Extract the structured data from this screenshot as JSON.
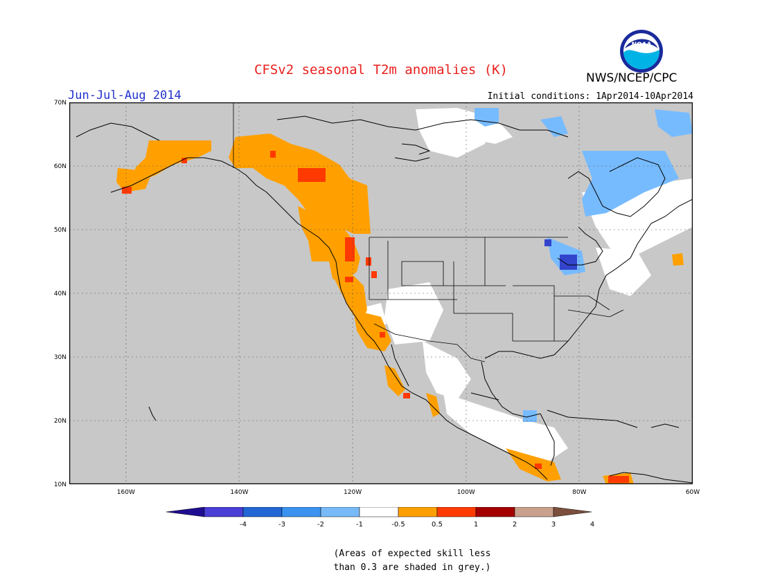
{
  "header": {
    "title": "CFSv2 seasonal T2m anomalies (K)",
    "org": "NWS/NCEP/CPC",
    "season": "Jun-Jul-Aug 2014",
    "initial_conditions": "Initial conditions: 1Apr2014-10Apr2014",
    "logo_text": "NOAA"
  },
  "map": {
    "region": "North America",
    "lon_range": [
      -170,
      -60
    ],
    "lat_range": [
      10,
      70
    ],
    "lat_labels": [
      "70N",
      "60N",
      "50N",
      "40N",
      "30N",
      "20N",
      "10N"
    ],
    "lon_labels": [
      "160W",
      "140W",
      "120W",
      "100W",
      "80W",
      "60W"
    ],
    "grey_skill_color": "#c8c8c8",
    "anomaly_patches": [
      {
        "category": "1",
        "color": "#ffa000",
        "area": "Alaska south coast"
      },
      {
        "category": "1",
        "color": "#ffa000",
        "area": "Yukon / Northern BC"
      },
      {
        "category": "1",
        "color": "#ffa000",
        "area": "Pacific Northwest coast"
      },
      {
        "category": "1",
        "color": "#ffa000",
        "area": "California / Nevada"
      },
      {
        "category": "1",
        "color": "#ffa000",
        "area": "Baja / Gulf of California"
      },
      {
        "category": "1",
        "color": "#ffa000",
        "area": "West Mexico coast"
      },
      {
        "category": "1",
        "color": "#ffa000",
        "area": "Central America"
      },
      {
        "category": "2",
        "color": "#ff3a00",
        "area": "Kodiak / Alaska"
      },
      {
        "category": "2",
        "color": "#ff3a00",
        "area": "Northern BC"
      },
      {
        "category": "2",
        "color": "#ff3a00",
        "area": "Washington / Oregon"
      },
      {
        "category": "2",
        "color": "#ff3a00",
        "area": "Northern South America"
      },
      {
        "category": "-1",
        "color": "#77bbff",
        "area": "Hudson Bay / Quebec"
      },
      {
        "category": "-1",
        "color": "#77bbff",
        "area": "Arctic islands"
      },
      {
        "category": "-1",
        "color": "#77bbff",
        "area": "Great Lakes"
      },
      {
        "category": "-3",
        "color": "#3344cc",
        "area": "Lake Huron / Michigan"
      }
    ]
  },
  "colorbar": {
    "labels": [
      "-4",
      "-3",
      "-2",
      "-1",
      "-0.5",
      "0.5",
      "1",
      "2",
      "3",
      "4"
    ],
    "colors": [
      "#1f0d91",
      "#4a3ed6",
      "#2166d4",
      "#3b93ef",
      "#78baf7",
      "#ffffff",
      "#ffa000",
      "#ff3c00",
      "#a50000",
      "#c8a08c",
      "#7c4f3c"
    ]
  },
  "note": {
    "line1": "(Areas of expected skill less",
    "line2": "than 0.3 are shaded in grey.)"
  }
}
